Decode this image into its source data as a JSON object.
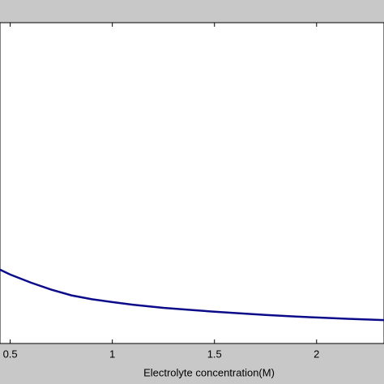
{
  "chart_data": {
    "type": "line",
    "x_label": "Electrolyte concentration(M)",
    "x": [
      0.45,
      0.5,
      0.6,
      0.7,
      0.8,
      0.9,
      1.0,
      1.1,
      1.25,
      1.4,
      1.5,
      1.6,
      1.75,
      1.9,
      2.0,
      2.15,
      2.33
    ],
    "series": [
      {
        "color": "#0b0b8a",
        "values": [
          23,
          21.5,
          19,
          16.8,
          15,
          13.8,
          12.9,
          12.1,
          11.1,
          10.4,
          9.9,
          9.5,
          8.9,
          8.4,
          8.1,
          7.7,
          7.3
        ]
      }
    ],
    "xlim": [
      0.45,
      2.33
    ],
    "xticks": [
      0.5,
      1,
      1.5,
      2
    ],
    "ylim": [
      0,
      100
    ]
  }
}
